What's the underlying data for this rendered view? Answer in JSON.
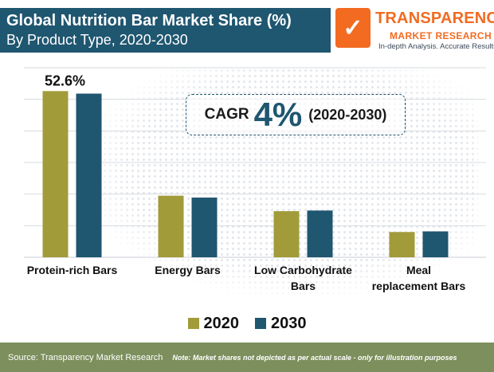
{
  "header": {
    "title_line1": "Global Nutrition Bar Market Share (%)",
    "title_line2": "By Product Type, 2020-2030"
  },
  "logo": {
    "name": "TRANSPARENCY",
    "sub": "MARKET RESEARCH",
    "tagline": "In-depth Analysis. Accurate Results"
  },
  "cagr": {
    "label": "CAGR",
    "value": "4%",
    "period": "(2020-2030)"
  },
  "colors": {
    "s2020": "#a19b3a",
    "s2030": "#1f5670",
    "header": "#1f5670",
    "footer": "#7c8f5c",
    "accent": "#f26b21"
  },
  "chart_data": {
    "type": "bar",
    "categories": [
      "Protein-rich Bars",
      "Energy Bars",
      "Low Carbohydrate Bars",
      "Meal replacement Bars"
    ],
    "category_lines": [
      [
        "Protein-rich Bars"
      ],
      [
        "Energy Bars"
      ],
      [
        "Low Carbohydrate",
        "Bars"
      ],
      [
        "Meal",
        "replacement Bars"
      ]
    ],
    "series": [
      {
        "name": "2020",
        "values": [
          52.6,
          19.5,
          14.6,
          8.0
        ]
      },
      {
        "name": "2030",
        "values": [
          51.8,
          18.9,
          14.8,
          8.2
        ]
      }
    ],
    "data_labels": [
      {
        "series": 0,
        "index": 0,
        "text": "52.6%"
      }
    ],
    "ylim": [
      0,
      60
    ],
    "grid": true,
    "legend": "bottom"
  },
  "footer": {
    "source": "Source: Transparency Market Research",
    "note": "Note: Market shares not depicted as per actual scale - only for illustration purposes"
  }
}
